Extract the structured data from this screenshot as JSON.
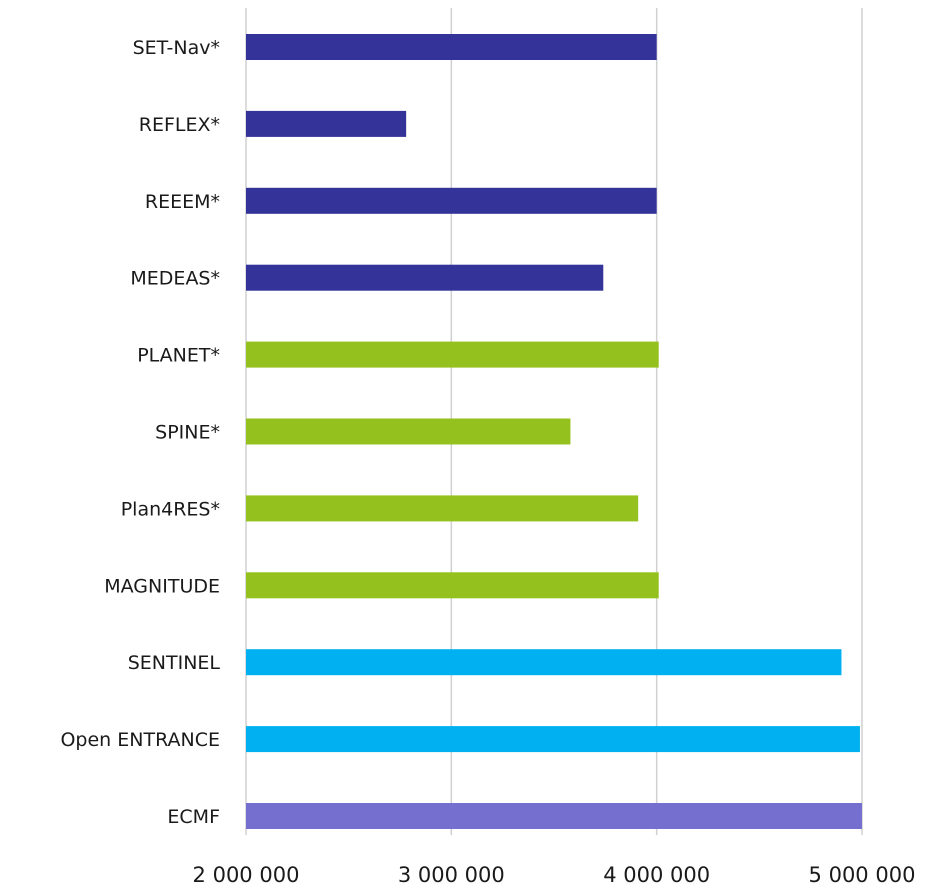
{
  "chart_data": {
    "type": "bar",
    "orientation": "horizontal",
    "title": "",
    "xlabel": "",
    "ylabel": "",
    "xlim": [
      2000000,
      5000000
    ],
    "x_ticks": [
      2000000,
      3000000,
      4000000,
      5000000
    ],
    "x_tick_labels": [
      "2 000 000",
      "3 000 000",
      "4 000 000",
      "5 000 000"
    ],
    "grid": "vertical",
    "legend": "none",
    "categories": [
      "SET-Nav*",
      "REFLEX*",
      "REEEM*",
      "MEDEAS*",
      "PLANET*",
      "SPINE*",
      "Plan4RES*",
      "MAGNITUDE",
      "SENTINEL",
      "Open ENTRANCE",
      "ECMF"
    ],
    "values": [
      4000000,
      2780000,
      4000000,
      3740000,
      4010000,
      3580000,
      3910000,
      4010000,
      4900000,
      4990000,
      5000000
    ],
    "colors": [
      "#333399",
      "#333399",
      "#333399",
      "#333399",
      "#95c11f",
      "#95c11f",
      "#95c11f",
      "#95c11f",
      "#00b0f0",
      "#00b0f0",
      "#7570d0"
    ]
  }
}
